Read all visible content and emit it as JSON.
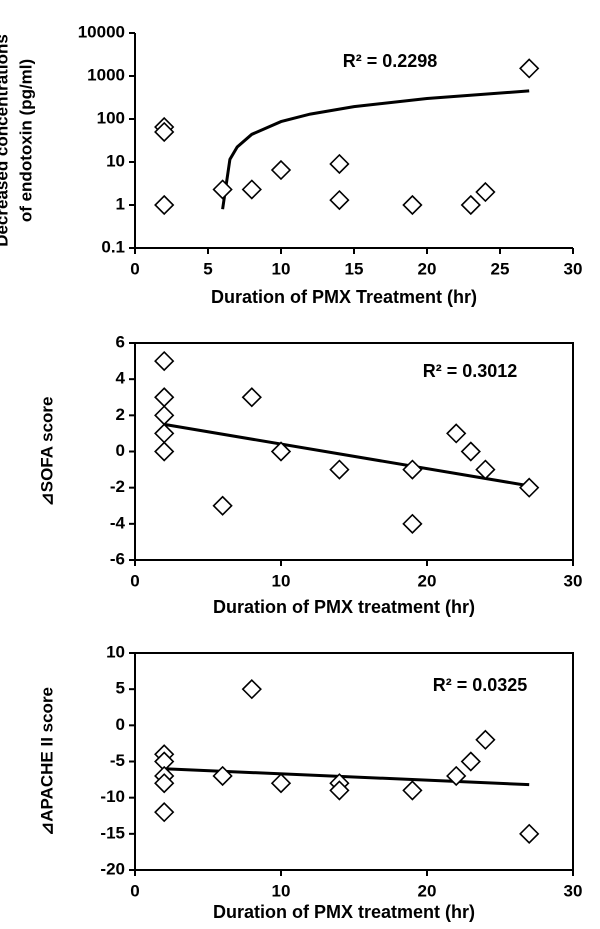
{
  "chart_data": [
    {
      "type": "scatter",
      "yscale": "log",
      "ylabel": [
        "Decreased concentrations",
        "of endotoxin (pg/ml)"
      ],
      "xlabel": "Duration of PMX Treatment (hr)",
      "annotation": "R² = 0.2298",
      "x": [
        2,
        2,
        2,
        6,
        8,
        10,
        14,
        14,
        19,
        23,
        24,
        27
      ],
      "values": [
        65,
        50,
        1,
        2.3,
        2.3,
        6.5,
        9,
        1.3,
        1,
        1,
        2,
        1500
      ],
      "trend": {
        "x": [
          6,
          6.5,
          7,
          8,
          10,
          12,
          15,
          20,
          27
        ],
        "values": [
          0.8,
          11.5,
          22.4,
          44,
          87,
          130,
          194,
          300,
          450
        ]
      },
      "xlim": [
        0,
        30
      ],
      "xticks": [
        0,
        5,
        10,
        15,
        20,
        25,
        30
      ],
      "ylim": [
        0.1,
        10000
      ],
      "yticks": [
        0.1,
        1,
        10,
        100,
        1000,
        10000
      ],
      "box": false
    },
    {
      "type": "scatter",
      "yscale": "linear",
      "ylabel": [
        "⊿SOFA score"
      ],
      "xlabel": "Duration of PMX treatment (hr)",
      "annotation": "R² = 0.3012",
      "x": [
        2,
        2,
        2,
        2,
        2,
        6,
        8,
        10,
        14,
        19,
        19,
        22,
        23,
        24,
        27
      ],
      "values": [
        5,
        3,
        2,
        1,
        0,
        -3,
        3,
        0,
        -1,
        -1,
        -4,
        1,
        0,
        -1,
        -2
      ],
      "trend": {
        "x": [
          2,
          27
        ],
        "values": [
          1.5,
          -1.9
        ]
      },
      "xlim": [
        0,
        30
      ],
      "xticks": [
        0,
        10,
        20,
        30
      ],
      "ylim": [
        -6,
        6
      ],
      "yticks": [
        -6,
        -4,
        -2,
        0,
        2,
        4,
        6
      ],
      "box": true
    },
    {
      "type": "scatter",
      "yscale": "linear",
      "ylabel": [
        "⊿APACHE II score"
      ],
      "xlabel": "Duration of PMX treatment (hr)",
      "annotation": "R² = 0.0325",
      "x": [
        2,
        2,
        2,
        2,
        2,
        6,
        8,
        10,
        14,
        14,
        19,
        22,
        23,
        24,
        27
      ],
      "values": [
        -4,
        -5,
        -7,
        -8,
        -12,
        -7,
        5,
        -8,
        -8,
        -9,
        -9,
        -7,
        -5,
        -2,
        -15
      ],
      "trend": {
        "x": [
          2,
          27
        ],
        "values": [
          -6,
          -8.2
        ]
      },
      "xlim": [
        0,
        30
      ],
      "xticks": [
        0,
        10,
        20,
        30
      ],
      "ylim": [
        -20,
        10
      ],
      "yticks": [
        -20,
        -15,
        -10,
        -5,
        0,
        5,
        10
      ],
      "box": true
    }
  ]
}
